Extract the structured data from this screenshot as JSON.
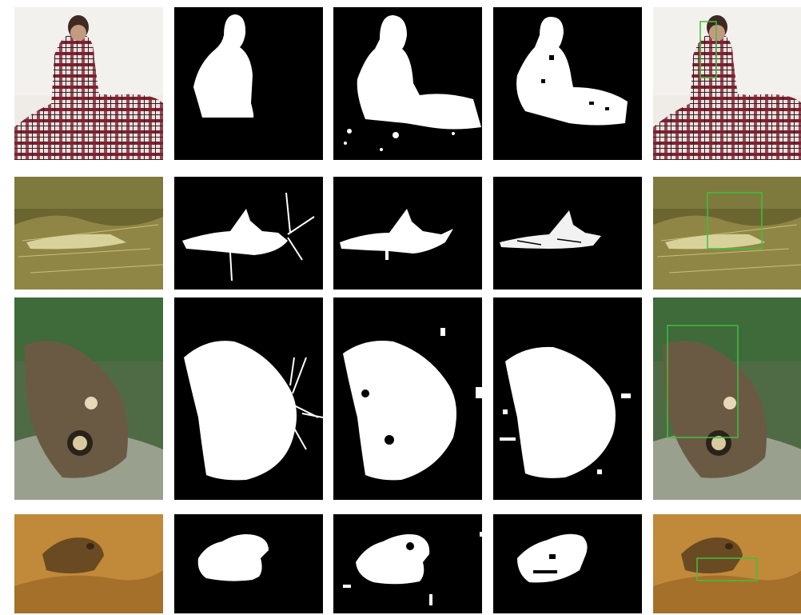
{
  "figure": {
    "rows": [
      {
        "subject": "person-in-plaid-blanket"
      },
      {
        "subject": "grasshopper"
      },
      {
        "subject": "butterfly"
      },
      {
        "subject": "frog"
      }
    ],
    "columns": [
      "input-image",
      "ground-truth-mask",
      "method-a-mask",
      "method-b-mask",
      "detection-box-overlay"
    ]
  },
  "colors": {
    "mask_fg": "#ffffff",
    "mask_bg": "#000000",
    "box": "#3fbf3f"
  }
}
